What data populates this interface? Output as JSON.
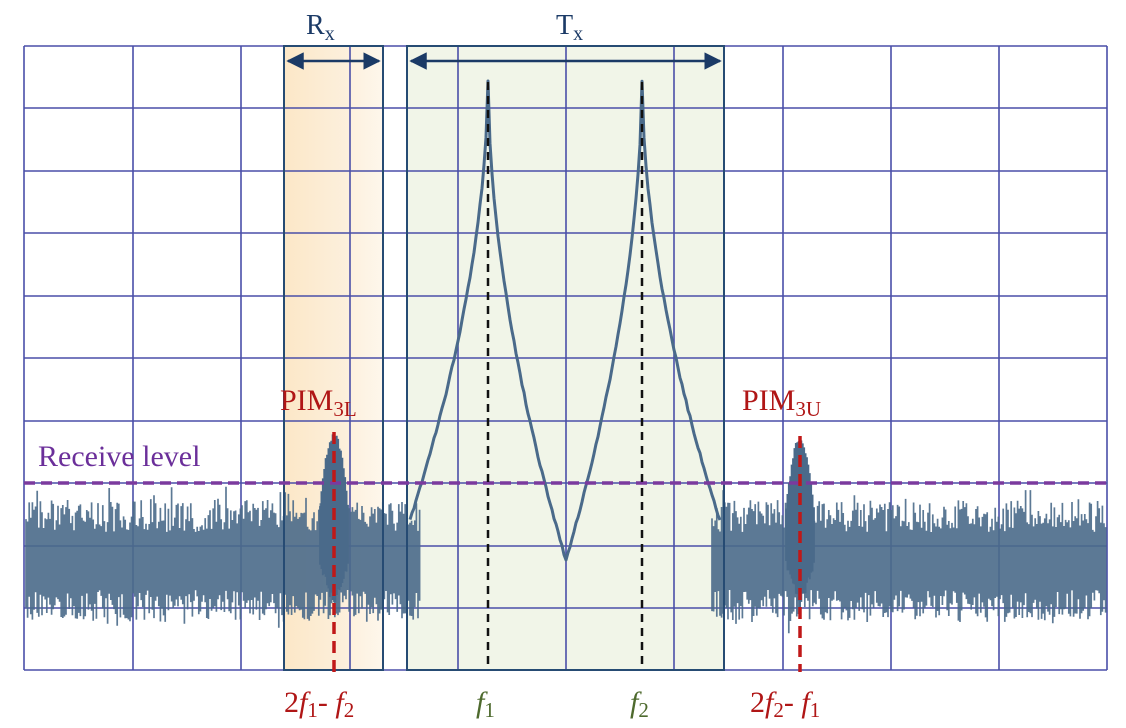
{
  "diagram": {
    "rx_label": {
      "main": "R",
      "sub": "x"
    },
    "tx_label": {
      "main": "T",
      "sub": "x"
    },
    "pim_lower": {
      "main": "PIM",
      "sub": "3L"
    },
    "pim_upper": {
      "main": "PIM",
      "sub": "3U"
    },
    "receive_level": "Receive level",
    "freq_f1": {
      "main": "f",
      "sub": "1"
    },
    "freq_f2": {
      "main": "f",
      "sub": "2"
    },
    "freq_pim_lower": {
      "a": "2",
      "b": "f",
      "c": "1",
      "d": "- ",
      "e": "f",
      "g": "2"
    },
    "freq_pim_upper": {
      "a": "2",
      "b": "f",
      "c": "2",
      "d": "- ",
      "e": "f",
      "g": "1"
    }
  },
  "colors": {
    "grid": "#4a4fa8",
    "trace": "#4a6a8a",
    "receive_level": "#7b3a9e",
    "band_border": "#264b73",
    "rx_fill": "#fbe6c4",
    "tx_fill": "#eef3e4",
    "pim_marker": "#c01818",
    "carrier_marker": "#111111"
  }
}
